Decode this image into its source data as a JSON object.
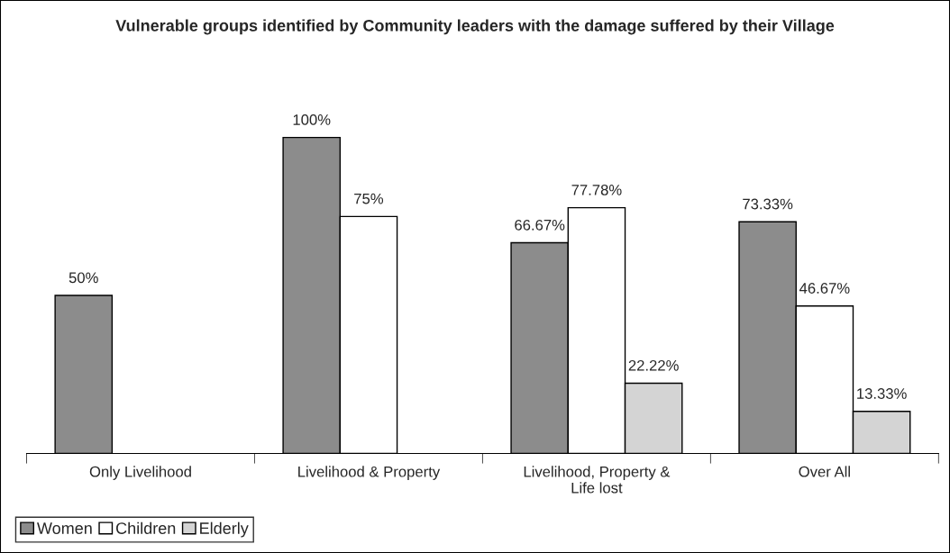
{
  "chart_data": {
    "type": "bar",
    "title": "Vulnerable groups identified by Community leaders with the damage suffered by their Village",
    "categories": [
      "Only Livelihood",
      "Livelihood & Property",
      "Livelihood, Property &\nLife lost",
      "Over All"
    ],
    "series": [
      {
        "name": "Women",
        "color": "#8c8c8c",
        "values": [
          50,
          100,
          66.67,
          73.33
        ],
        "value_labels": [
          "50%",
          "100%",
          "66.67%",
          "73.33%"
        ]
      },
      {
        "name": "Children",
        "color": "#ffffff",
        "values": [
          null,
          75,
          77.78,
          46.67
        ],
        "value_labels": [
          null,
          "75%",
          "77.78%",
          "46.67%"
        ]
      },
      {
        "name": "Elderly",
        "color": "#d4d4d4",
        "values": [
          null,
          null,
          22.22,
          13.33
        ],
        "value_labels": [
          null,
          null,
          "22.22%",
          "13.33%"
        ]
      }
    ],
    "legend": "bottom left",
    "grid": false
  }
}
